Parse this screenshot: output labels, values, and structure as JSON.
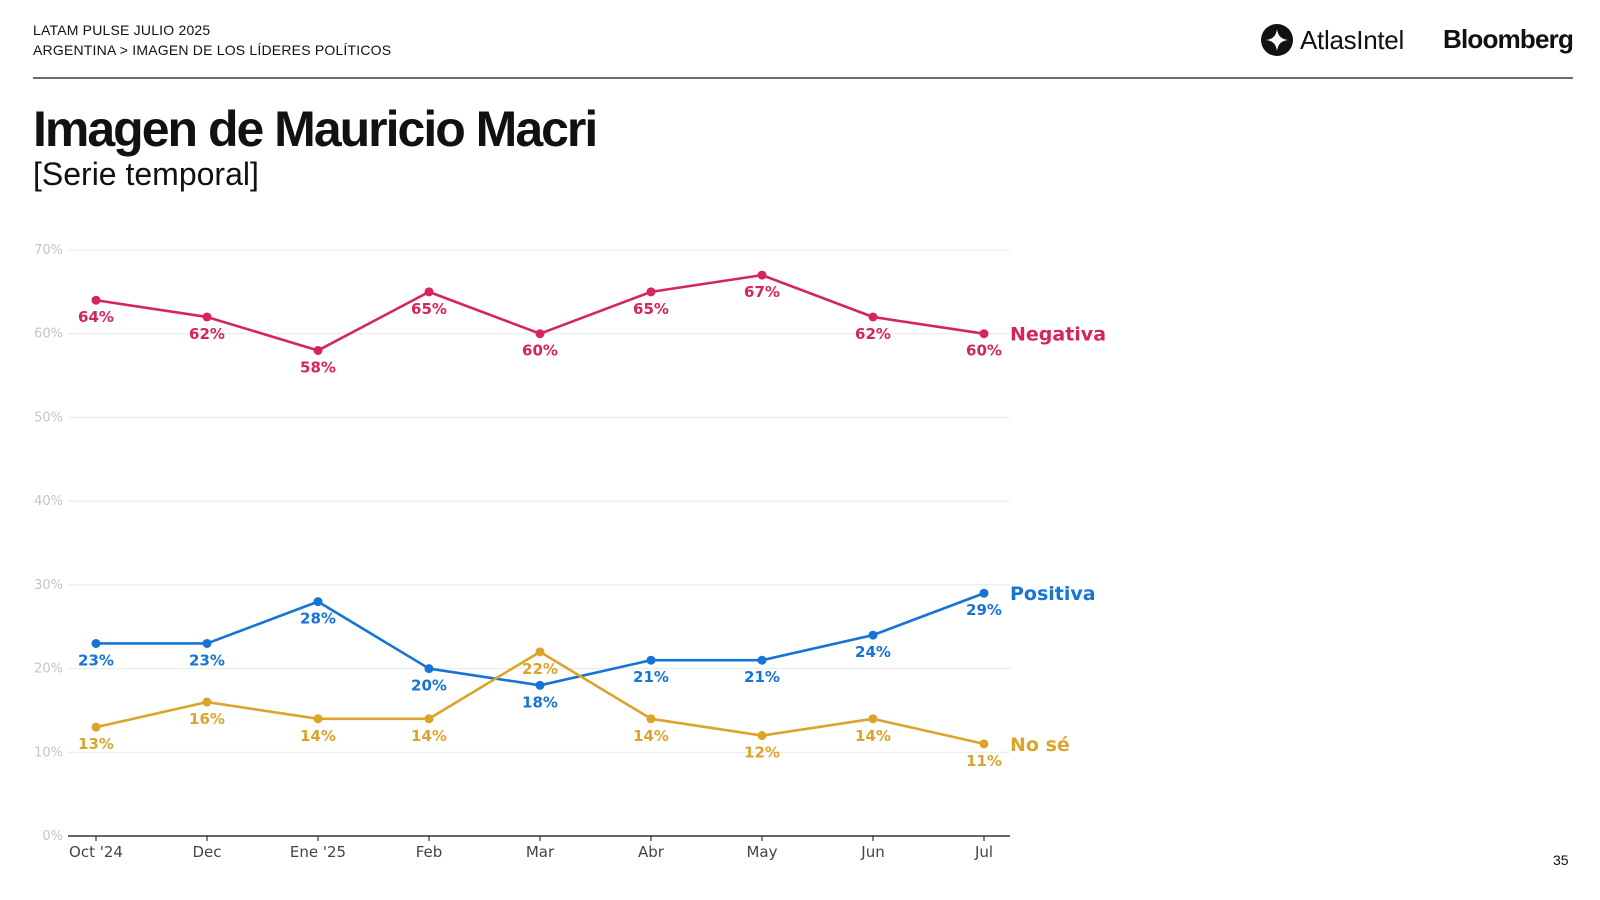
{
  "header": {
    "line1": "LATAM PULSE JULIO 2025",
    "line2": "ARGENTINA > IMAGEN DE LOS LÍDERES POLÍTICOS",
    "logo_atlas": "AtlasIntel",
    "logo_bloomberg": "Bloomberg"
  },
  "title": "Imagen de Mauricio Macri",
  "subtitle": "[Serie temporal]",
  "page_number": "35",
  "colors": {
    "negativa": "#d6245f",
    "positiva": "#1574d4",
    "nose": "#dca42a",
    "grid": "#e8e8e8",
    "axis": "#333333",
    "tick": "#c4c4c4"
  },
  "chart_data": {
    "type": "line",
    "categories": [
      "Oct '24",
      "Dec",
      "Ene '25",
      "Feb",
      "Mar",
      "Abr",
      "May",
      "Jun",
      "Jul"
    ],
    "ylim": [
      0,
      70
    ],
    "yticks": [
      0,
      10,
      20,
      30,
      40,
      50,
      60,
      70
    ],
    "ytick_labels": [
      "0%",
      "10%",
      "20%",
      "30%",
      "40%",
      "50%",
      "60%",
      "70%"
    ],
    "grid": true,
    "series": [
      {
        "key": "negativa",
        "name": "Negativa",
        "values": [
          64,
          62,
          58,
          65,
          60,
          65,
          67,
          62,
          60
        ],
        "labels": [
          "64%",
          "62%",
          "58%",
          "65%",
          "60%",
          "65%",
          "67%",
          "62%",
          "60%"
        ]
      },
      {
        "key": "positiva",
        "name": "Positiva",
        "values": [
          23,
          23,
          28,
          20,
          18,
          21,
          21,
          24,
          29
        ],
        "labels": [
          "23%",
          "23%",
          "28%",
          "20%",
          "18%",
          "21%",
          "21%",
          "24%",
          "29%"
        ]
      },
      {
        "key": "nose",
        "name": "No sé",
        "values": [
          13,
          16,
          14,
          14,
          22,
          14,
          12,
          14,
          11
        ],
        "labels": [
          "13%",
          "16%",
          "14%",
          "14%",
          "22%",
          "14%",
          "12%",
          "14%",
          "11%"
        ]
      }
    ]
  }
}
